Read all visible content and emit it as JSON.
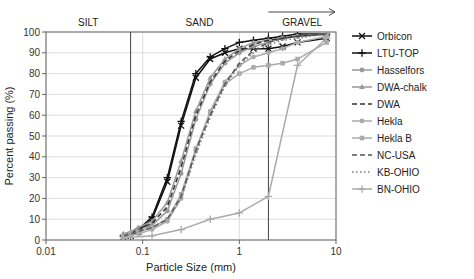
{
  "chart_data": {
    "type": "line",
    "x_label": "Particle Size (mm)",
    "y_label": "Percent passing (%)",
    "log": "x",
    "xlim": [
      0.01,
      10
    ],
    "ylim": [
      0,
      100
    ],
    "xticks": [
      0.01,
      0.1,
      1,
      10
    ],
    "yticks": [
      0,
      10,
      20,
      30,
      40,
      50,
      60,
      70,
      80,
      90,
      100
    ],
    "grid": true,
    "legend": "right",
    "zone_dividers": [
      0.075,
      2.0
    ],
    "zone_labels": [
      "SILT",
      "SAND",
      "GRAVEL"
    ],
    "series": [
      {
        "name": "Orbicon",
        "color": "#111111",
        "marker": "x",
        "line_style": "solid",
        "x": [
          0.063,
          0.075,
          0.09,
          0.125,
          0.18,
          0.25,
          0.355,
          0.5,
          0.71,
          1.0,
          1.4,
          2.0,
          2.8,
          4.0,
          8.0
        ],
        "values": [
          1,
          2,
          4,
          10,
          28,
          55,
          78,
          87,
          90,
          92,
          92,
          92,
          93,
          95,
          97
        ]
      },
      {
        "name": "LTU-TOP",
        "color": "#111111",
        "marker": "plus",
        "line_style": "solid",
        "x": [
          0.063,
          0.075,
          0.09,
          0.125,
          0.18,
          0.25,
          0.355,
          0.5,
          0.71,
          1.0,
          1.4,
          2.0,
          2.8,
          4.0,
          8.0
        ],
        "values": [
          2,
          3,
          5,
          11,
          30,
          57,
          80,
          88,
          92,
          95,
          96,
          97,
          98,
          99,
          99
        ]
      },
      {
        "name": "Hasselfors",
        "color": "#999999",
        "marker": "circle",
        "line_style": "solid",
        "x": [
          0.063,
          0.075,
          0.09,
          0.125,
          0.18,
          0.25,
          0.355,
          0.5,
          0.71,
          1.0,
          1.4,
          2.0,
          2.8,
          4.0,
          8.0
        ],
        "values": [
          2,
          3,
          5,
          7,
          14,
          32,
          58,
          75,
          85,
          90,
          93,
          95,
          97,
          98,
          99
        ]
      },
      {
        "name": "DWA-chalk",
        "color": "#999999",
        "marker": "triangle",
        "line_style": "solid",
        "x": [
          0.063,
          0.075,
          0.09,
          0.125,
          0.18,
          0.25,
          0.355,
          0.5,
          0.71,
          1.0,
          1.4,
          2.0,
          2.8,
          4.0,
          8.0
        ],
        "values": [
          3,
          4,
          6,
          9,
          18,
          38,
          62,
          78,
          87,
          92,
          95,
          96,
          97,
          98,
          99
        ]
      },
      {
        "name": "DWA",
        "color": "#333333",
        "marker": "none",
        "line_style": "dashed",
        "x": [
          0.063,
          0.075,
          0.09,
          0.125,
          0.18,
          0.25,
          0.355,
          0.5,
          0.71,
          1.0,
          1.4,
          2.0,
          2.8,
          4.0,
          8.0
        ],
        "values": [
          2,
          3,
          5,
          8,
          16,
          35,
          60,
          76,
          86,
          91,
          94,
          96,
          97,
          98,
          99
        ]
      },
      {
        "name": "Hekla",
        "color": "#aaaaaa",
        "marker": "circle",
        "line_style": "solid",
        "x": [
          0.063,
          0.075,
          0.09,
          0.125,
          0.18,
          0.25,
          0.355,
          0.5,
          0.71,
          1.0,
          1.4,
          2.0,
          2.8,
          4.0,
          8.0
        ],
        "values": [
          1,
          2,
          3,
          5,
          9,
          20,
          43,
          62,
          76,
          84,
          88,
          90,
          92,
          95,
          98
        ]
      },
      {
        "name": "Hekla B",
        "color": "#aaaaaa",
        "marker": "square",
        "line_style": "solid",
        "x": [
          0.063,
          0.075,
          0.09,
          0.125,
          0.18,
          0.25,
          0.355,
          0.5,
          0.71,
          1.0,
          1.4,
          2.0,
          2.8,
          4.0,
          8.0
        ],
        "values": [
          2,
          3,
          4,
          6,
          10,
          22,
          44,
          61,
          75,
          80,
          83,
          84,
          85,
          87,
          95
        ]
      },
      {
        "name": "NC-USA",
        "color": "#555555",
        "marker": "none",
        "line_style": "dashed",
        "x": [
          0.063,
          0.075,
          0.09,
          0.125,
          0.18,
          0.25,
          0.355,
          0.5,
          0.71,
          1.0,
          1.4,
          2.0,
          2.8,
          4.0,
          8.0
        ],
        "values": [
          2,
          3,
          4,
          6,
          10,
          21,
          43,
          60,
          75,
          85,
          91,
          95,
          97,
          98,
          99
        ]
      },
      {
        "name": "KB-OHIO",
        "color": "#777777",
        "marker": "none",
        "line_style": "dotted",
        "x": [
          0.063,
          0.075,
          0.09,
          0.125,
          0.18,
          0.25,
          0.355,
          0.5,
          0.71,
          1.0,
          1.4,
          2.0,
          2.8,
          4.0,
          8.0
        ],
        "values": [
          2,
          3,
          4,
          6,
          10,
          20,
          41,
          59,
          74,
          84,
          90,
          94,
          96,
          97,
          99
        ]
      },
      {
        "name": "BN-OHIO",
        "color": "#aaaaaa",
        "marker": "plus",
        "line_style": "solid",
        "x": [
          0.063,
          0.125,
          0.25,
          0.5,
          1.0,
          2.0,
          4.0,
          8.0
        ],
        "values": [
          1,
          2,
          5,
          10,
          13,
          21,
          84,
          97
        ]
      }
    ]
  }
}
